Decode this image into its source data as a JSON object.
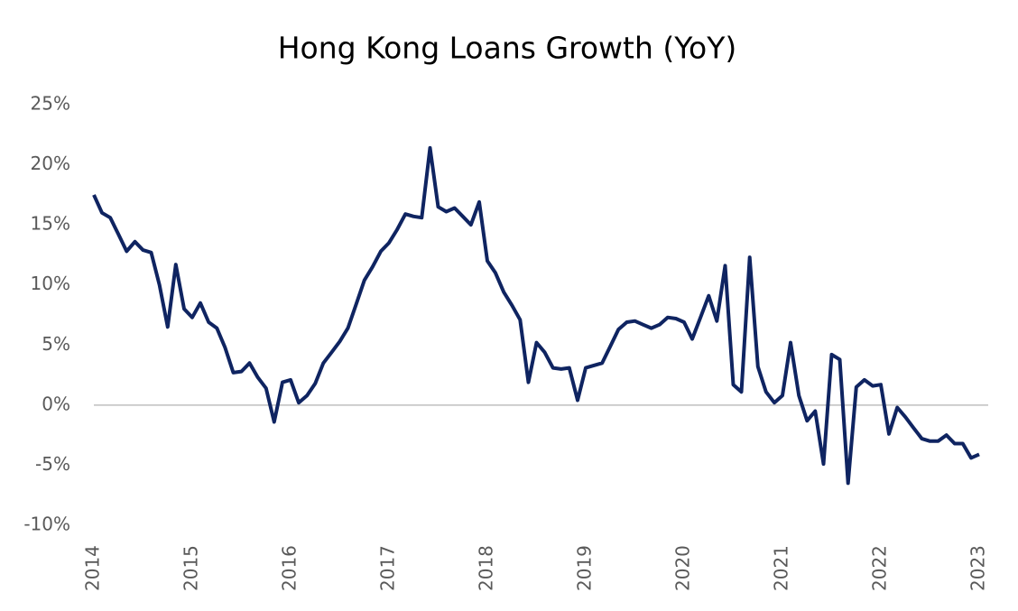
{
  "chart_data": {
    "type": "line",
    "title": "Hong Kong Loans Growth (YoY)",
    "x": [
      2014,
      2014.083,
      2014.167,
      2014.25,
      2014.333,
      2014.417,
      2014.5,
      2014.583,
      2014.667,
      2014.75,
      2014.833,
      2014.917,
      2015,
      2015.083,
      2015.167,
      2015.25,
      2015.333,
      2015.417,
      2015.5,
      2015.583,
      2015.667,
      2015.75,
      2015.833,
      2015.917,
      2016,
      2016.083,
      2016.167,
      2016.25,
      2016.333,
      2016.417,
      2016.5,
      2016.583,
      2016.667,
      2016.75,
      2016.833,
      2016.917,
      2017,
      2017.083,
      2017.167,
      2017.25,
      2017.333,
      2017.417,
      2017.5,
      2017.583,
      2017.667,
      2017.75,
      2017.833,
      2017.917,
      2018,
      2018.083,
      2018.167,
      2018.25,
      2018.333,
      2018.417,
      2018.5,
      2018.583,
      2018.667,
      2018.75,
      2018.833,
      2018.917,
      2019,
      2019.083,
      2019.167,
      2019.25,
      2019.333,
      2019.417,
      2019.5,
      2019.583,
      2019.667,
      2019.75,
      2019.833,
      2019.917,
      2020,
      2020.083,
      2020.167,
      2020.25,
      2020.333,
      2020.417,
      2020.5,
      2020.583,
      2020.667,
      2020.75,
      2020.833,
      2020.917,
      2021,
      2021.083,
      2021.167,
      2021.25,
      2021.333,
      2021.417,
      2021.5,
      2021.583,
      2021.667,
      2021.75,
      2021.833,
      2021.917,
      2022,
      2022.083,
      2022.167,
      2022.25,
      2022.333,
      2022.417,
      2022.5,
      2022.583,
      2022.667,
      2022.75,
      2022.833,
      2022.917,
      2023
    ],
    "series": [
      {
        "color": "#0f2461",
        "values": [
          17.5,
          16,
          15.6,
          14.2,
          12.8,
          13.6,
          12.9,
          12.7,
          10,
          6.5,
          11.7,
          8,
          7.3,
          8.5,
          6.9,
          6.4,
          4.8,
          2.7,
          2.8,
          3.5,
          2.3,
          1.4,
          -1.4,
          1.9,
          2.1,
          0.2,
          0.8,
          1.8,
          3.5,
          4.4,
          5.3,
          6.4,
          8.4,
          10.4,
          11.5,
          12.8,
          13.5,
          14.6,
          15.9,
          15.7,
          15.6,
          21.4,
          16.5,
          16.1,
          16.4,
          15.7,
          15,
          16.9,
          12,
          11,
          9.4,
          8.3,
          7.1,
          1.9,
          5.2,
          4.4,
          3.1,
          3,
          3.1,
          0.4,
          3.1,
          3.3,
          3.5,
          4.9,
          6.3,
          6.9,
          7,
          6.7,
          6.4,
          6.7,
          7.3,
          7.2,
          6.9,
          5.5,
          7.3,
          9.1,
          7,
          11.6,
          1.7,
          1.1,
          12.3,
          3.2,
          1.1,
          0.2,
          0.8,
          5.2,
          0.8,
          -1.3,
          -0.5,
          -4.9,
          4.2,
          3.8,
          -6.5,
          1.5,
          2.1,
          1.6,
          1.7,
          -2.4,
          -0.2,
          -1,
          -1.9,
          -2.8,
          -3,
          -3,
          -2.5,
          -3.2,
          -3.2,
          -4.4,
          -4.1
        ]
      }
    ],
    "xlim": [
      2014,
      2023
    ],
    "xticks": [
      2014,
      2015,
      2016,
      2017,
      2018,
      2019,
      2020,
      2021,
      2022,
      2023
    ],
    "ylim": [
      -10,
      25
    ],
    "yticks": [
      {
        "value": 25,
        "label": "25%"
      },
      {
        "value": 20,
        "label": "20%"
      },
      {
        "value": 15,
        "label": "15%"
      },
      {
        "value": 10,
        "label": "10%"
      },
      {
        "value": 5,
        "label": "5%"
      },
      {
        "value": 0,
        "label": "0%"
      },
      {
        "value": -5,
        "label": "-5%"
      },
      {
        "value": -10,
        "label": "-10%"
      }
    ]
  }
}
